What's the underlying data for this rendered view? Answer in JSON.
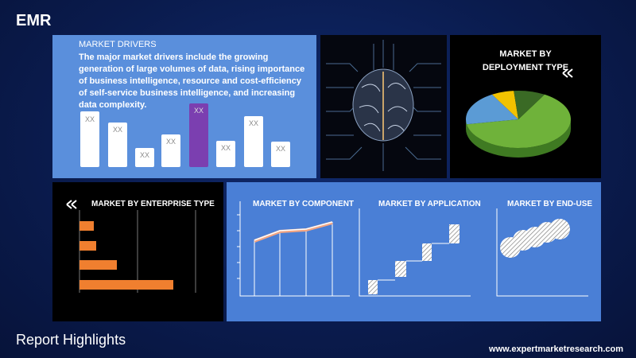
{
  "logo": "EMR",
  "market_drivers": {
    "title": "MARKET DRIVERS",
    "text": "The major market drivers include the growing generation of large volumes of data, rising importance of business intelligence, resource and cost-efficiency of self-service business intelligence, and increasing data complexity.",
    "bar_labels": [
      "XX",
      "XX",
      "XX",
      "XX",
      "XX",
      "XX",
      "XX",
      "XX"
    ]
  },
  "deployment": {
    "title": "MARKET BY DEPLOYMENT TYPE"
  },
  "enterprise": {
    "title": "MARKET BY ENTERPRISE TYPE"
  },
  "component": {
    "title": "MARKET BY COMPONENT"
  },
  "application": {
    "title": "MARKET BY APPLICATION"
  },
  "end_use": {
    "title": "MARKET BY END-USE"
  },
  "footer": {
    "title": "Report Highlights",
    "url": "www.expertmarketresearch.com"
  }
}
